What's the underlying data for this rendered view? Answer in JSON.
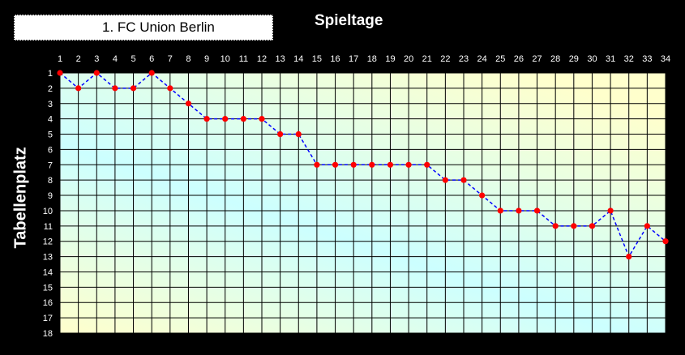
{
  "chart_data": {
    "type": "line",
    "title": "Spieltage",
    "ylabel": "Tabellenplatz",
    "x": [
      1,
      2,
      3,
      4,
      5,
      6,
      7,
      8,
      9,
      10,
      11,
      12,
      13,
      14,
      15,
      16,
      17,
      18,
      19,
      20,
      21,
      22,
      23,
      24,
      25,
      26,
      27,
      28,
      29,
      30,
      31,
      32,
      33,
      34
    ],
    "ylim": [
      18,
      1
    ],
    "y_reversed": true,
    "x_axis_position": "top",
    "grid": true,
    "legend_position": "top-left",
    "series": [
      {
        "name": "1. FC Union Berlin",
        "values": [
          1,
          2,
          1,
          2,
          2,
          1,
          2,
          3,
          4,
          4,
          4,
          4,
          5,
          5,
          7,
          7,
          7,
          7,
          7,
          7,
          7,
          8,
          8,
          9,
          10,
          10,
          10,
          11,
          11,
          11,
          10,
          13,
          11,
          12
        ],
        "line_color": "#0000FF",
        "marker_color": "#FF0000",
        "line_style": "dashed"
      }
    ]
  },
  "colors": {
    "background": "#000000",
    "gradient_start": "#FFFFCC",
    "gradient_end": "#CCFFFF",
    "grid": "#000000"
  }
}
